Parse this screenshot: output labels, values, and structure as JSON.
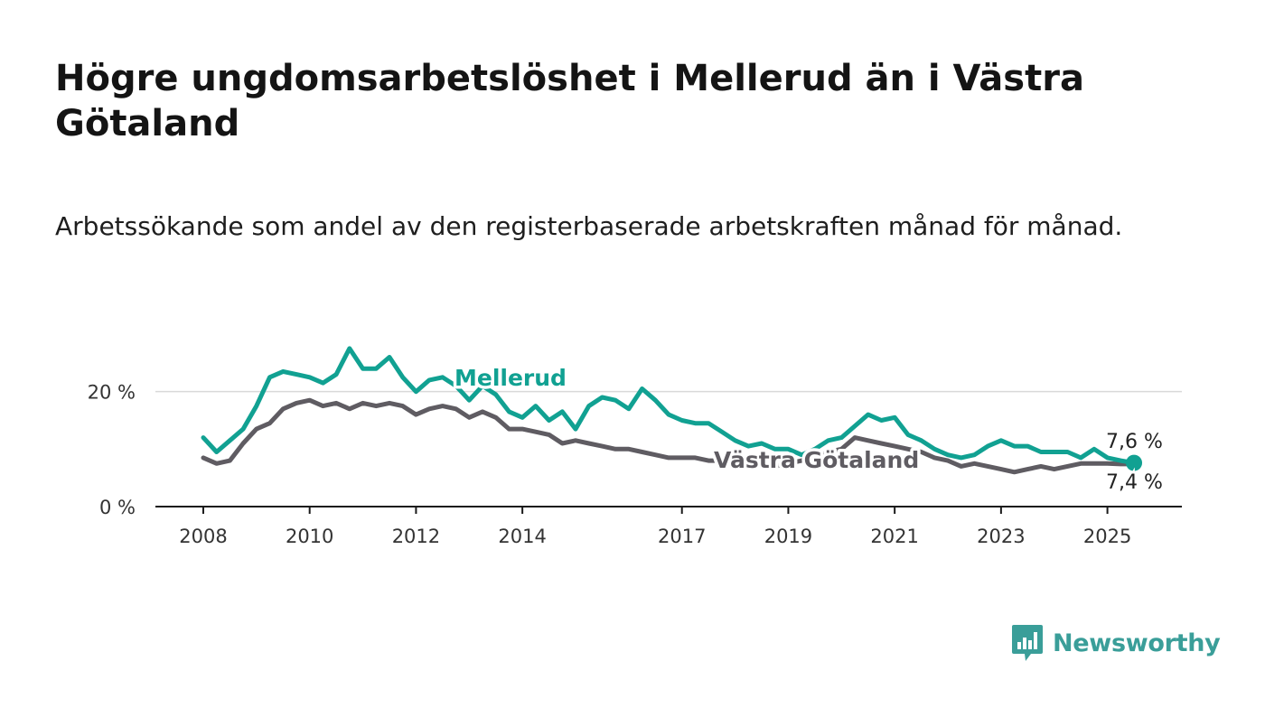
{
  "title": "Högre ungdomsarbetslöshet i Mellerud än i Västra Götaland",
  "subtitle": "Arbetssökande som andel av den registerbaserade arbetskraften månad för månad.",
  "brand": {
    "name": "Newsworthy",
    "color": "#3a9e99",
    "icon": "bar-chart-speech-bubble-icon"
  },
  "chart_data": {
    "type": "line",
    "ylim": [
      0,
      30
    ],
    "y_ticks": [
      0,
      20
    ],
    "y_tick_labels": [
      "0 %",
      "20 %"
    ],
    "x_ticks": [
      2008,
      2010,
      2012,
      2014,
      2017,
      2019,
      2021,
      2023,
      2025
    ],
    "x_tick_labels": [
      "2008",
      "2010",
      "2012",
      "2014",
      "2017",
      "2019",
      "2021",
      "2023",
      "2025"
    ],
    "xlim": [
      2007.1,
      2026.4
    ],
    "grid": true,
    "series": [
      {
        "name": "Mellerud",
        "color": "#11a192",
        "end_label": "7,6 %",
        "x": [
          2008.0,
          2008.25,
          2008.5,
          2008.75,
          2009.0,
          2009.25,
          2009.5,
          2009.75,
          2010.0,
          2010.25,
          2010.5,
          2010.75,
          2011.0,
          2011.25,
          2011.5,
          2011.75,
          2012.0,
          2012.25,
          2012.5,
          2012.75,
          2013.0,
          2013.25,
          2013.5,
          2013.75,
          2014.0,
          2014.25,
          2014.5,
          2014.75,
          2015.0,
          2015.25,
          2015.5,
          2015.75,
          2016.0,
          2016.25,
          2016.5,
          2016.75,
          2017.0,
          2017.25,
          2017.5,
          2017.75,
          2018.0,
          2018.25,
          2018.5,
          2018.75,
          2019.0,
          2019.25,
          2019.5,
          2019.75,
          2020.0,
          2020.25,
          2020.5,
          2020.75,
          2021.0,
          2021.25,
          2021.5,
          2021.75,
          2022.0,
          2022.25,
          2022.5,
          2022.75,
          2023.0,
          2023.25,
          2023.5,
          2023.75,
          2024.0,
          2024.25,
          2024.5,
          2024.75,
          2025.0,
          2025.25,
          2025.5
        ],
        "y": [
          12.0,
          9.5,
          11.5,
          13.5,
          17.5,
          22.5,
          23.5,
          23.0,
          22.5,
          21.5,
          23.0,
          27.5,
          24.0,
          24.0,
          26.0,
          22.5,
          20.0,
          22.0,
          22.5,
          21.0,
          18.5,
          21.0,
          19.5,
          16.5,
          15.5,
          17.5,
          15.0,
          16.5,
          13.5,
          17.5,
          19.0,
          18.5,
          17.0,
          20.5,
          18.5,
          16.0,
          15.0,
          14.5,
          14.5,
          13.0,
          11.5,
          10.5,
          11.0,
          10.0,
          10.0,
          9.0,
          10.0,
          11.5,
          12.0,
          14.0,
          16.0,
          15.0,
          15.5,
          12.5,
          11.5,
          10.0,
          9.0,
          8.5,
          9.0,
          10.5,
          11.5,
          10.5,
          10.5,
          9.5,
          9.5,
          9.5,
          8.5,
          10.0,
          8.5,
          8.0,
          7.6
        ]
      },
      {
        "name": "Västra Götaland",
        "color": "#5f5c62",
        "end_label": "7,4 %",
        "x": [
          2008.0,
          2008.25,
          2008.5,
          2008.75,
          2009.0,
          2009.25,
          2009.5,
          2009.75,
          2010.0,
          2010.25,
          2010.5,
          2010.75,
          2011.0,
          2011.25,
          2011.5,
          2011.75,
          2012.0,
          2012.25,
          2012.5,
          2012.75,
          2013.0,
          2013.25,
          2013.5,
          2013.75,
          2014.0,
          2014.25,
          2014.5,
          2014.75,
          2015.0,
          2015.25,
          2015.5,
          2015.75,
          2016.0,
          2016.25,
          2016.5,
          2016.75,
          2017.0,
          2017.25,
          2017.5,
          2017.75,
          2018.0,
          2018.25,
          2018.5,
          2018.75,
          2019.0,
          2019.25,
          2019.5,
          2019.75,
          2020.0,
          2020.25,
          2020.5,
          2020.75,
          2021.0,
          2021.25,
          2021.5,
          2021.75,
          2022.0,
          2022.25,
          2022.5,
          2022.75,
          2023.0,
          2023.25,
          2023.5,
          2023.75,
          2024.0,
          2024.25,
          2024.5,
          2024.75,
          2025.0,
          2025.25,
          2025.5
        ],
        "y": [
          8.5,
          7.5,
          8.0,
          11.0,
          13.5,
          14.5,
          17.0,
          18.0,
          18.5,
          17.5,
          18.0,
          17.0,
          18.0,
          17.5,
          18.0,
          17.5,
          16.0,
          17.0,
          17.5,
          17.0,
          15.5,
          16.5,
          15.5,
          13.5,
          13.5,
          13.0,
          12.5,
          11.0,
          11.5,
          11.0,
          10.5,
          10.0,
          10.0,
          9.5,
          9.0,
          8.5,
          8.5,
          8.5,
          8.0,
          8.0,
          7.5,
          7.5,
          7.5,
          7.0,
          7.5,
          8.0,
          8.5,
          9.5,
          10.0,
          12.0,
          11.5,
          11.0,
          10.5,
          10.0,
          9.5,
          8.5,
          8.0,
          7.0,
          7.5,
          7.0,
          6.5,
          6.0,
          6.5,
          7.0,
          6.5,
          7.0,
          7.5,
          7.5,
          7.5,
          7.4,
          7.4
        ]
      }
    ]
  }
}
